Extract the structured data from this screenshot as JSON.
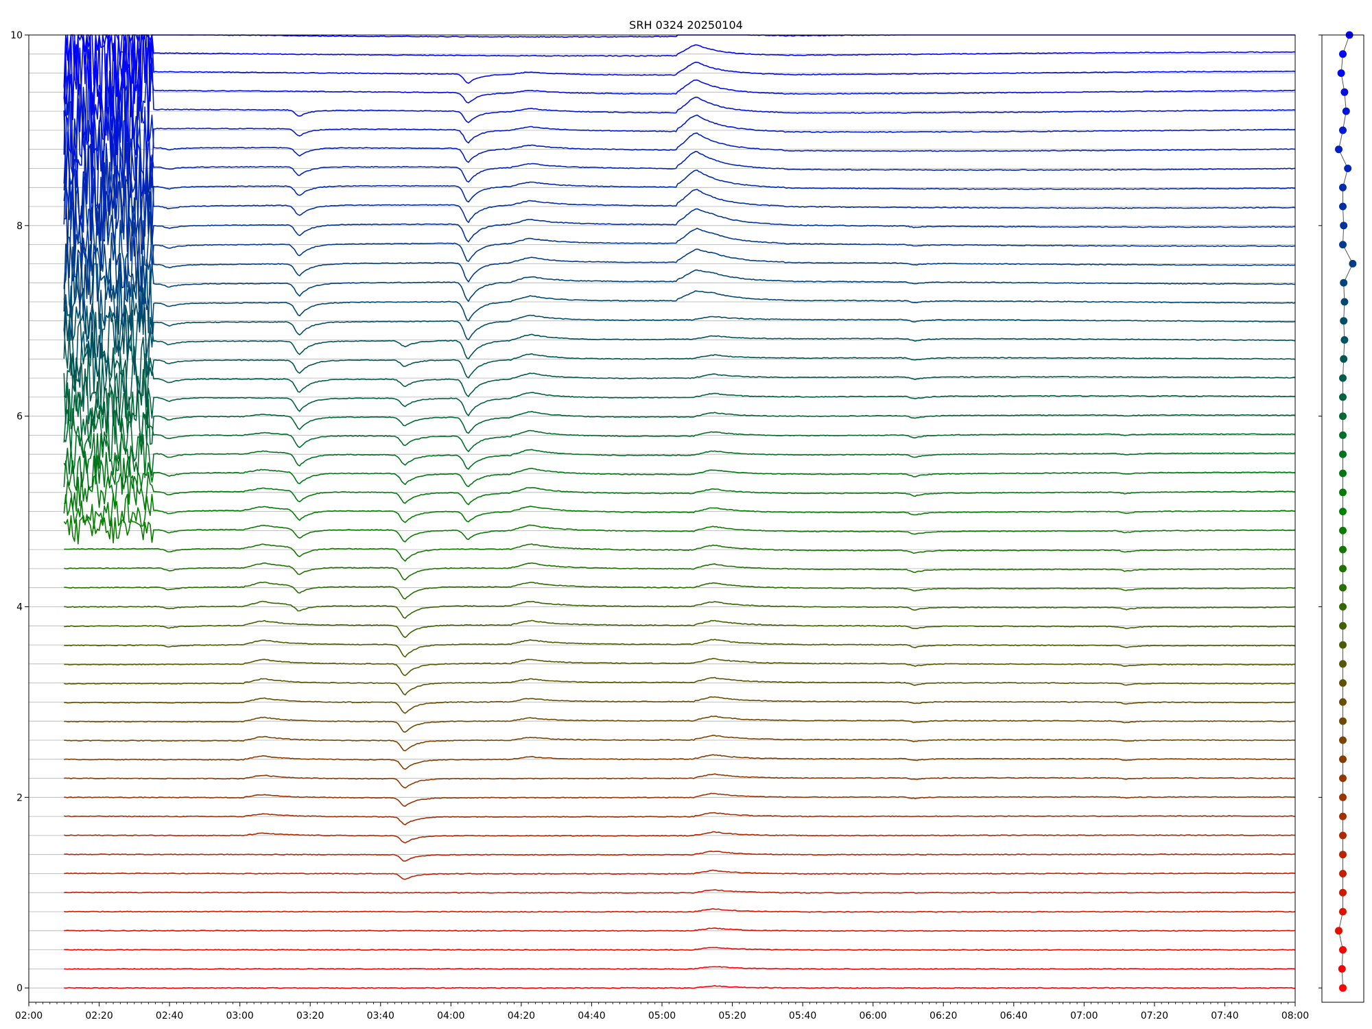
{
  "chart_data": [
    {
      "type": "line",
      "title": "SRH 0324 20250104",
      "xlabel": "",
      "ylabel": "",
      "x_range": [
        "02:00",
        "08:00"
      ],
      "x_ticks": [
        "02:00",
        "02:20",
        "02:40",
        "03:00",
        "03:20",
        "03:40",
        "04:00",
        "04:20",
        "04:40",
        "05:00",
        "05:20",
        "05:40",
        "06:00",
        "06:20",
        "06:40",
        "07:00",
        "07:20",
        "07:40",
        "08:00"
      ],
      "ylim": [
        -0.15,
        10
      ],
      "y_ticks": [
        0,
        2,
        4,
        6,
        8,
        10
      ],
      "grid": "horizontal lines at each trace baseline",
      "n_series": 51,
      "series_spacing": 0.2,
      "color_from": "#ff0000",
      "color_mid": "#008000",
      "color_to": "#0000ff",
      "data_start": "02:10",
      "data_end": "08:00",
      "noisy_interval": [
        "02:10",
        "02:35"
      ],
      "events": [
        {
          "time": "02:40",
          "amplitude": -0.04,
          "rows": [
            18,
            44
          ]
        },
        {
          "time": "03:07",
          "amplitude": 0.05,
          "rows": [
            8,
            30
          ]
        },
        {
          "time": "03:17",
          "amplitude": -0.14,
          "rows": [
            20,
            46
          ]
        },
        {
          "time": "03:47",
          "amplitude": -0.13,
          "rows": [
            6,
            34
          ]
        },
        {
          "time": "04:05",
          "amplitude": -0.2,
          "rows": [
            24,
            48
          ]
        },
        {
          "time": "04:23",
          "amplitude": 0.06,
          "rows": [
            12,
            48
          ]
        },
        {
          "time": "05:10",
          "amplitude": 0.18,
          "rows": [
            36,
            50
          ]
        },
        {
          "time": "05:15",
          "amplitude": 0.05,
          "rows": [
            0,
            40
          ]
        },
        {
          "time": "06:12",
          "amplitude": -0.03,
          "rows": [
            10,
            40
          ]
        },
        {
          "time": "07:12",
          "amplitude": -0.02,
          "rows": [
            10,
            30
          ]
        }
      ]
    },
    {
      "type": "scatter",
      "title": "",
      "xlabel": "",
      "ylabel": "",
      "x_offsets": [
        0,
        -0.01,
        0,
        -0.05,
        0,
        0,
        0,
        0,
        0,
        0,
        0,
        0,
        0,
        0,
        0,
        0,
        0,
        0,
        0,
        0,
        0,
        0,
        0,
        0,
        0,
        0,
        0,
        0,
        0,
        0,
        0,
        0,
        0,
        0.01,
        0.02,
        0.01,
        0.02,
        0.01,
        0.12,
        0,
        0.01,
        0,
        0,
        0.06,
        -0.05,
        0,
        0.04,
        0.02,
        -0.02,
        0,
        0.08
      ],
      "y": [
        0.0,
        0.2,
        0.4,
        0.6,
        0.8,
        1.0,
        1.2,
        1.4,
        1.6,
        1.8,
        2.0,
        2.2,
        2.4,
        2.6,
        2.8,
        3.0,
        3.2,
        3.4,
        3.6,
        3.8,
        4.0,
        4.2,
        4.4,
        4.6,
        4.8,
        5.0,
        5.2,
        5.4,
        5.6,
        5.8,
        6.0,
        6.2,
        6.4,
        6.6,
        6.8,
        7.0,
        7.2,
        7.4,
        7.6,
        7.8,
        8.0,
        8.2,
        8.4,
        8.6,
        8.8,
        9.0,
        9.2,
        9.4,
        9.6,
        9.8,
        10.0
      ]
    }
  ]
}
